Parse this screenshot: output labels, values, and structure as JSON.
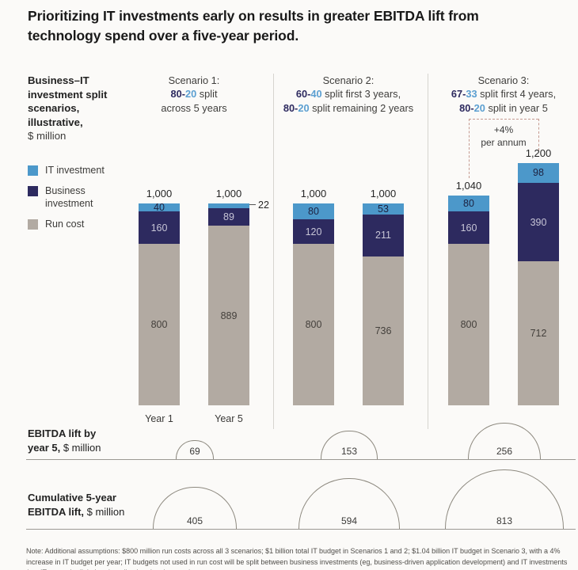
{
  "title": "Prioritizing IT investments early on results in greater EBITDA lift from technology spend over a five-year period.",
  "palette": {
    "it_blue": "#4c98ca",
    "business_navy": "#2d2a5f",
    "run_gray": "#b2aaa2",
    "split_dark": "#2d2a5f",
    "split_blue": "#5b9fd1",
    "dashed_accent": "#c59a90",
    "baseline": "#9b9893",
    "circle_stroke": "#8d897f"
  },
  "sidebar": {
    "heading_bold": "Business–IT investment split scenarios, illustrative,",
    "heading_unit": "$ million",
    "legend": [
      {
        "name": "it",
        "label": "IT investment"
      },
      {
        "name": "business",
        "label": "Business\ninvestment"
      },
      {
        "name": "run",
        "label": "Run cost"
      }
    ]
  },
  "chart_data": {
    "type": "bar",
    "stacked": true,
    "unit": "$ million",
    "stack_order_top_to_bottom": [
      "it",
      "business",
      "run"
    ],
    "scenarios": [
      {
        "name": "Scenario 1:",
        "split_lines": [
          [
            [
              "80-",
              "dark"
            ],
            [
              "20",
              "blue"
            ],
            [
              " split",
              "plain"
            ]
          ],
          [
            [
              "across 5 years",
              "plain"
            ]
          ]
        ],
        "show_x_labels": true,
        "bars": [
          {
            "x_label": "Year 1",
            "total_label": "1,000",
            "total": 1000,
            "it": 40,
            "business": 160,
            "run": 800
          },
          {
            "x_label": "Year 5",
            "total_label": "1,000",
            "total": 1000,
            "it": 22,
            "business": 89,
            "run": 889,
            "it_label_outside": true
          }
        ],
        "ebitda_lift_by_year5": 69,
        "cumulative_5yr_ebitda_lift": 405
      },
      {
        "name": "Scenario 2:",
        "split_lines": [
          [
            [
              "60-",
              "dark"
            ],
            [
              "40",
              "blue"
            ],
            [
              " split first 3 years,",
              "plain"
            ]
          ],
          [
            [
              "80-",
              "dark"
            ],
            [
              "20",
              "blue"
            ],
            [
              " split remaining 2 years",
              "plain"
            ]
          ]
        ],
        "show_x_labels": false,
        "bars": [
          {
            "x_label": "Year 1",
            "total_label": "1,000",
            "total": 1000,
            "it": 80,
            "business": 120,
            "run": 800
          },
          {
            "x_label": "Year 5",
            "total_label": "1,000",
            "total": 1000,
            "it": 53,
            "business": 211,
            "run": 736
          }
        ],
        "ebitda_lift_by_year5": 153,
        "cumulative_5yr_ebitda_lift": 594
      },
      {
        "name": "Scenario 3:",
        "split_lines": [
          [
            [
              "67-",
              "dark"
            ],
            [
              "33",
              "blue"
            ],
            [
              " split first 4 years,",
              "plain"
            ]
          ],
          [
            [
              "80-",
              "dark"
            ],
            [
              "20",
              "blue"
            ],
            [
              " split in year 5",
              "plain"
            ]
          ]
        ],
        "show_x_labels": false,
        "annotation": {
          "line1": "+4%",
          "line2": "per annum"
        },
        "bars": [
          {
            "x_label": "Year 1",
            "total_label": "1,040",
            "total": 1040,
            "it": 80,
            "business": 160,
            "run": 800
          },
          {
            "x_label": "Year 5",
            "total_label": "1,200",
            "total": 1200,
            "it": 98,
            "business": 390,
            "run": 712
          }
        ],
        "ebitda_lift_by_year5": 256,
        "cumulative_5yr_ebitda_lift": 813
      }
    ]
  },
  "rows": {
    "ebitda": {
      "line1": "EBITDA lift by",
      "line2_bold": "year 5,",
      "line2_unit": "$ million"
    },
    "cumulative": {
      "line1": "Cumulative 5-year",
      "line2_bold": "EBITDA lift,",
      "line2_unit": "$ million"
    }
  },
  "note": "Note: Additional assumptions: $800 million run costs across all 3 scenarios; $1 billion total IT budget in Scenarios 1 and 2; $1.04 billion IT budget in Scenario 3, with a 4% increase in IT budget per year; IT budgets not used in run cost will be split between business investments (eg, business-driven application development) and IT investments (eg, IT network, digital and application development)"
}
